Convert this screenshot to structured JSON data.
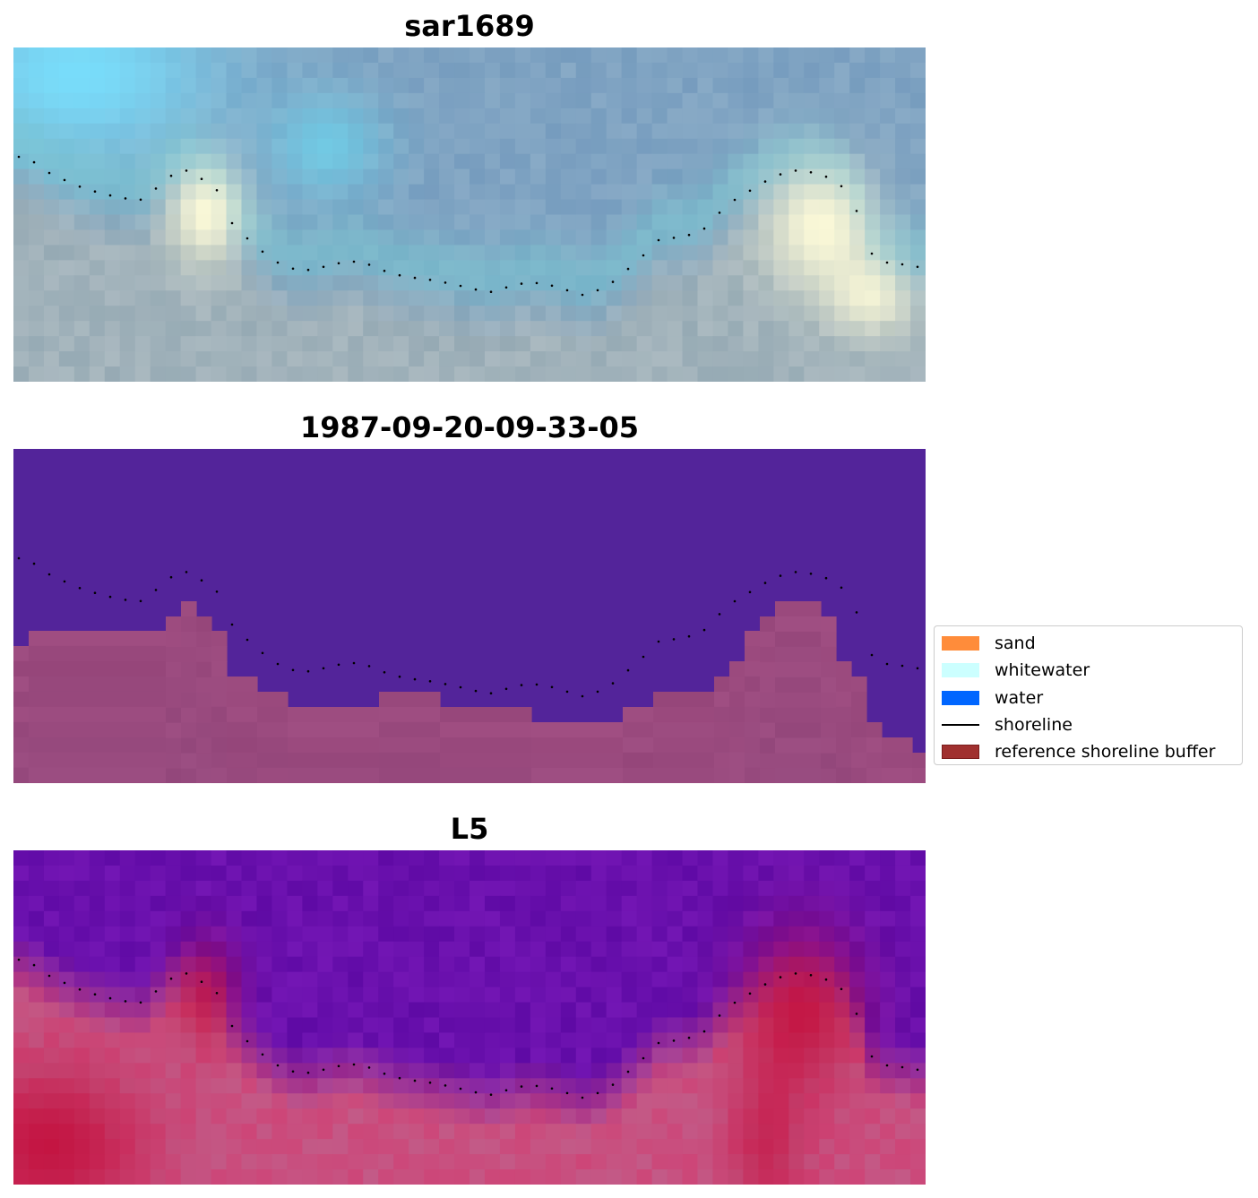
{
  "panels": [
    {
      "title": "sar1689",
      "kind": "rgb"
    },
    {
      "title": "1987-09-20-09-33-05",
      "kind": "classified"
    },
    {
      "title": "L5",
      "kind": "index"
    }
  ],
  "legend": {
    "items": [
      {
        "label": "sand",
        "type": "patch",
        "color": "#ff8c3a"
      },
      {
        "label": "whitewater",
        "type": "patch",
        "color": "#ccffff"
      },
      {
        "label": "water",
        "type": "patch",
        "color": "#0066ff"
      },
      {
        "label": "shoreline",
        "type": "line",
        "color": "#000000"
      },
      {
        "label": "reference shoreline buffer",
        "type": "patch",
        "color": "#a0302f",
        "edge": "#7a1c1c"
      }
    ]
  },
  "colors": {
    "water_class": "#53249a",
    "buffer_overlay": "#8e4478",
    "shoreline_dots": "#000000"
  }
}
